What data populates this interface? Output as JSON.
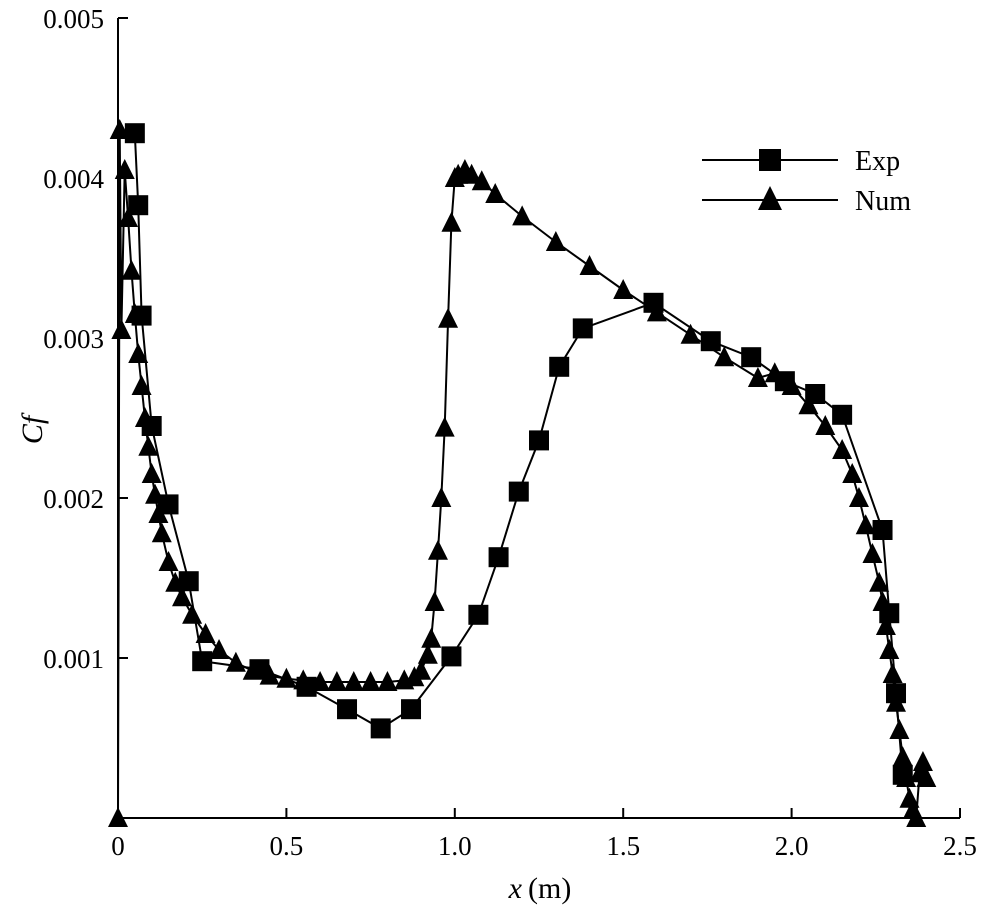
{
  "chart_data": {
    "type": "line",
    "title": "",
    "xlabel_var": "x",
    "xlabel_unit": "(m)",
    "ylabel": "Cf",
    "xlim": [
      0,
      2.5
    ],
    "ylim": [
      0,
      0.005
    ],
    "x_ticks": [
      0,
      0.5,
      1.0,
      1.5,
      2.0,
      2.5
    ],
    "x_tick_labels": [
      "0",
      "0.5",
      "1.0",
      "1.5",
      "2.0",
      "2.5"
    ],
    "y_ticks": [
      0.001,
      0.002,
      0.003,
      0.004,
      0.005
    ],
    "y_tick_labels": [
      "0.001",
      "0.002",
      "0.003",
      "0.004",
      "0.005"
    ],
    "grid": false,
    "legend_position": "top-right",
    "series": [
      {
        "name": "Exp",
        "marker": "square",
        "x": [
          0.05,
          0.06,
          0.07,
          0.1,
          0.15,
          0.21,
          0.25,
          0.42,
          0.56,
          0.68,
          0.78,
          0.87,
          0.99,
          1.07,
          1.13,
          1.19,
          1.25,
          1.31,
          1.38,
          1.59,
          1.76,
          1.88,
          1.98,
          2.07,
          2.15,
          2.27,
          2.29,
          2.31,
          2.33
        ],
        "y": [
          0.00428,
          0.00383,
          0.00314,
          0.00245,
          0.00196,
          0.00148,
          0.00098,
          0.00093,
          0.00082,
          0.00068,
          0.00056,
          0.00068,
          0.00101,
          0.00127,
          0.00163,
          0.00204,
          0.00236,
          0.00282,
          0.00306,
          0.00322,
          0.00298,
          0.00288,
          0.00273,
          0.00265,
          0.00252,
          0.0018,
          0.00128,
          0.00078,
          0.00027
        ]
      },
      {
        "name": "Num",
        "marker": "triangle",
        "x": [
          0.0,
          0.005,
          0.01,
          0.02,
          0.03,
          0.04,
          0.05,
          0.06,
          0.07,
          0.08,
          0.09,
          0.1,
          0.11,
          0.12,
          0.13,
          0.15,
          0.17,
          0.19,
          0.22,
          0.26,
          0.3,
          0.35,
          0.4,
          0.45,
          0.5,
          0.55,
          0.6,
          0.65,
          0.7,
          0.75,
          0.8,
          0.85,
          0.88,
          0.9,
          0.92,
          0.93,
          0.94,
          0.95,
          0.96,
          0.97,
          0.98,
          0.99,
          1.0,
          1.01,
          1.03,
          1.05,
          1.08,
          1.12,
          1.2,
          1.3,
          1.4,
          1.5,
          1.6,
          1.7,
          1.8,
          1.9,
          1.95,
          2.0,
          2.05,
          2.1,
          2.15,
          2.18,
          2.2,
          2.22,
          2.24,
          2.26,
          2.27,
          2.28,
          2.29,
          2.3,
          2.31,
          2.32,
          2.33,
          2.34,
          2.35,
          2.36,
          2.37,
          2.38,
          2.39,
          2.4
        ],
        "y": [
          0.0,
          0.0043,
          0.00305,
          0.00405,
          0.00375,
          0.00342,
          0.00315,
          0.0029,
          0.0027,
          0.0025,
          0.00232,
          0.00215,
          0.00202,
          0.0019,
          0.00178,
          0.0016,
          0.00147,
          0.00138,
          0.00127,
          0.00115,
          0.00105,
          0.00097,
          0.00092,
          0.00089,
          0.00087,
          0.00086,
          0.00085,
          0.00085,
          0.00085,
          0.00085,
          0.00085,
          0.00086,
          0.00088,
          0.00092,
          0.00102,
          0.00112,
          0.00135,
          0.00167,
          0.002,
          0.00244,
          0.00312,
          0.00372,
          0.004,
          0.00402,
          0.00405,
          0.00402,
          0.00398,
          0.0039,
          0.00376,
          0.0036,
          0.00345,
          0.0033,
          0.00316,
          0.00302,
          0.00288,
          0.00275,
          0.00278,
          0.0027,
          0.00258,
          0.00245,
          0.0023,
          0.00215,
          0.002,
          0.00183,
          0.00165,
          0.00147,
          0.00135,
          0.0012,
          0.00105,
          0.0009,
          0.00072,
          0.00055,
          0.00038,
          0.00025,
          0.00012,
          5e-05,
          0.0,
          0.00028,
          0.00035,
          0.00025
        ]
      }
    ]
  }
}
